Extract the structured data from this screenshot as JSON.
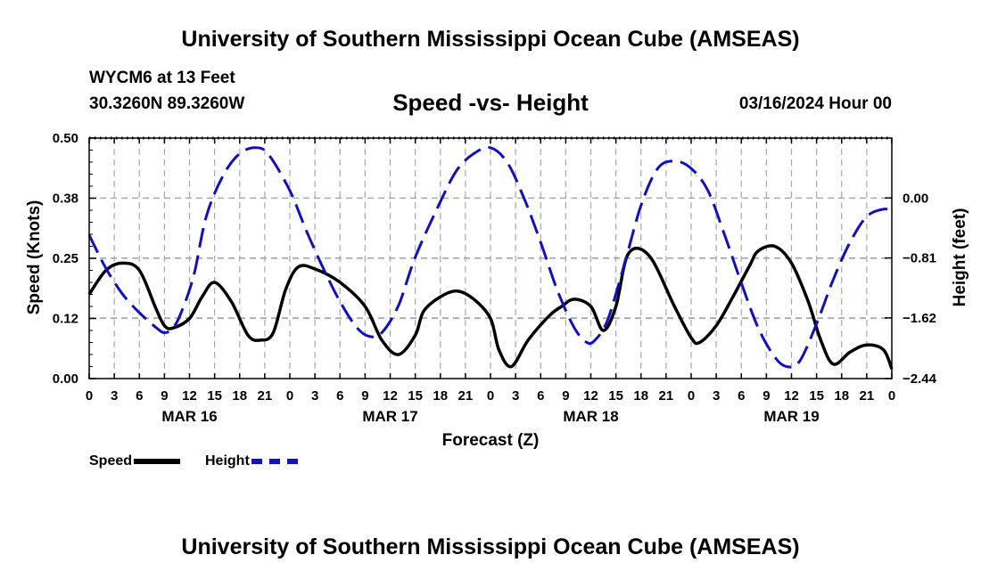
{
  "header": {
    "title": "University of Southern Mississippi Ocean Cube (AMSEAS)",
    "station": "WYCM6 at 13 Feet",
    "coords": "30.3260N  89.3260W",
    "datetime": "03/16/2024 Hour 00"
  },
  "footer": {
    "title": "University of Southern Mississippi Ocean Cube (AMSEAS)"
  },
  "chart_data": {
    "type": "line",
    "title": "Speed -vs- Height",
    "xlabel": "Forecast (Z)",
    "ylabel": "Speed (Knots)",
    "ylabel_right": "Height (feet)",
    "x_unit": "hours since 03/16/2024 00Z",
    "xlim": [
      0,
      96
    ],
    "ylim": [
      0,
      0.5
    ],
    "ylim_right": [
      -2.44,
      0.81
    ],
    "x_tick_values": [
      0,
      3,
      6,
      9,
      12,
      15,
      18,
      21,
      24,
      27,
      30,
      33,
      36,
      39,
      42,
      45,
      48,
      51,
      54,
      57,
      60,
      63,
      66,
      69,
      72,
      75,
      78,
      81,
      84,
      87,
      90,
      93,
      96
    ],
    "x_tick_labels": [
      "0",
      "3",
      "6",
      "9",
      "12",
      "15",
      "18",
      "21",
      "0",
      "3",
      "6",
      "9",
      "12",
      "15",
      "18",
      "21",
      "0",
      "3",
      "6",
      "9",
      "12",
      "15",
      "18",
      "21",
      "0",
      "3",
      "6",
      "9",
      "12",
      "15",
      "18",
      "21",
      "0"
    ],
    "day_labels": [
      {
        "x": 12,
        "label": "MAR 16"
      },
      {
        "x": 36,
        "label": "MAR 17"
      },
      {
        "x": 60,
        "label": "MAR 18"
      },
      {
        "x": 84,
        "label": "MAR 19"
      }
    ],
    "y_ticks_left": [
      {
        "value": 0.0,
        "label": "0.00"
      },
      {
        "value": 0.125,
        "label": "0.12"
      },
      {
        "value": 0.25,
        "label": "0.25"
      },
      {
        "value": 0.375,
        "label": "0.38"
      },
      {
        "value": 0.5,
        "label": "0.50"
      }
    ],
    "y_ticks_right": [
      {
        "value": 0.0,
        "label": "0.00"
      },
      {
        "value": -0.81,
        "label": "−0.81"
      },
      {
        "value": -1.62,
        "label": "−1.62"
      },
      {
        "value": -2.44,
        "label": "−2.44"
      }
    ],
    "grid": true,
    "legend": "bottom-left",
    "series": [
      {
        "name": "Speed",
        "axis": "left",
        "color": "#000000",
        "style": "solid",
        "x": [
          0,
          2,
          4,
          6,
          8,
          9,
          10,
          12,
          13.5,
          15,
          17,
          19,
          20.5,
          22,
          23.5,
          25,
          27,
          30,
          33,
          35,
          37,
          39,
          40,
          42,
          44,
          46,
          48,
          49,
          50.5,
          52.5,
          55,
          56.5,
          58,
          60,
          61.5,
          63,
          64.5,
          67,
          70,
          72,
          73,
          75,
          77,
          79,
          80,
          82,
          84,
          86,
          87.5,
          89,
          91,
          93,
          95,
          96
        ],
        "values": [
          0.175,
          0.225,
          0.24,
          0.225,
          0.145,
          0.11,
          0.105,
          0.125,
          0.17,
          0.2,
          0.16,
          0.09,
          0.08,
          0.095,
          0.185,
          0.232,
          0.228,
          0.2,
          0.15,
          0.08,
          0.05,
          0.09,
          0.14,
          0.17,
          0.182,
          0.165,
          0.125,
          0.06,
          0.025,
          0.08,
          0.13,
          0.15,
          0.165,
          0.15,
          0.1,
          0.15,
          0.26,
          0.255,
          0.15,
          0.085,
          0.075,
          0.11,
          0.17,
          0.235,
          0.265,
          0.275,
          0.24,
          0.16,
          0.08,
          0.03,
          0.055,
          0.07,
          0.06,
          0.02
        ]
      },
      {
        "name": "Height",
        "axis": "right",
        "color": "#1010c0",
        "style": "dashed",
        "x": [
          0,
          2,
          4,
          6,
          8,
          9,
          10,
          11,
          12.5,
          14,
          16,
          18,
          20,
          21.5,
          24,
          26,
          28,
          30,
          32,
          33.5,
          35,
          37,
          39,
          42,
          44,
          46,
          48,
          50,
          52,
          54,
          56,
          58,
          59.5,
          60.5,
          62,
          64,
          66,
          68,
          70,
          72,
          74,
          76,
          78,
          80,
          82,
          83.5,
          85,
          87,
          89,
          91,
          93,
          95,
          96
        ],
        "values": [
          -0.5,
          -0.95,
          -1.3,
          -1.55,
          -1.75,
          -1.82,
          -1.76,
          -1.55,
          -1.05,
          -0.25,
          0.3,
          0.6,
          0.68,
          0.58,
          0.1,
          -0.45,
          -0.95,
          -1.4,
          -1.75,
          -1.87,
          -1.82,
          -1.45,
          -0.8,
          -0.05,
          0.38,
          0.6,
          0.68,
          0.48,
          0.0,
          -0.6,
          -1.25,
          -1.75,
          -1.95,
          -1.92,
          -1.65,
          -0.9,
          -0.1,
          0.4,
          0.5,
          0.4,
          0.1,
          -0.5,
          -1.15,
          -1.75,
          -2.15,
          -2.28,
          -2.2,
          -1.7,
          -1.1,
          -0.6,
          -0.25,
          -0.15,
          -0.18
        ]
      }
    ]
  },
  "legend": {
    "speed_label": "Speed",
    "height_label": "Height"
  }
}
